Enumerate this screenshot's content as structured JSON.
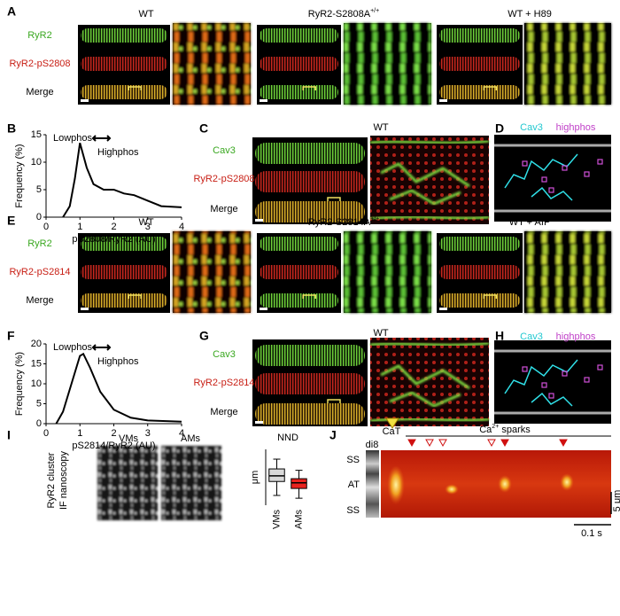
{
  "panels": {
    "A": {
      "label": "A",
      "titles": [
        "WT",
        "RyR2-S2808A",
        "WT + H89"
      ],
      "title_sup": "+/+",
      "rows": [
        "RyR2",
        "RyR2-pS2808",
        "Merge"
      ]
    },
    "B": {
      "label": "B"
    },
    "C": {
      "label": "C",
      "title": "WT",
      "rows": [
        "Cav3",
        "RyR2-pS2808",
        "Merge"
      ]
    },
    "D": {
      "label": "D",
      "legend": [
        "Cav3",
        "highphos"
      ]
    },
    "E": {
      "label": "E",
      "titles": [
        "WT",
        "RyR2-S2814A",
        "WT + AIP"
      ],
      "title_sup": "+/+",
      "rows": [
        "RyR2",
        "RyR2-pS2814",
        "Merge"
      ]
    },
    "F": {
      "label": "F"
    },
    "G": {
      "label": "G",
      "title": "WT",
      "rows": [
        "Cav3",
        "RyR2-pS2814",
        "Merge"
      ]
    },
    "H": {
      "label": "H",
      "legend": [
        "Cav3",
        "highphos"
      ]
    },
    "I": {
      "label": "I",
      "side_label": [
        "RyR2 cluster",
        "IF nanoscopy"
      ],
      "image_titles": [
        "VMs",
        "AMs"
      ]
    },
    "J": {
      "label": "J",
      "di8": "di8",
      "cat": "CaT",
      "sparks_base": "Ca",
      "sparks_sup": "2+",
      "sparks_rest": " sparks",
      "regions": [
        "SS",
        "AT",
        "SS"
      ],
      "scale_y": "5 μm",
      "scale_x": "0.1 s"
    }
  },
  "chart_data": [
    {
      "type": "line",
      "x": [
        0.5,
        0.7,
        0.85,
        1.0,
        1.2,
        1.4,
        1.7,
        2.0,
        2.3,
        2.6,
        3.0,
        3.4,
        4.0
      ],
      "values": [
        0,
        2,
        7,
        13.5,
        9,
        6,
        5,
        5,
        4.3,
        4,
        3,
        2,
        1.8
      ],
      "color": "#000000",
      "xlim": [
        0,
        4
      ],
      "ylim": [
        0,
        15
      ],
      "xticks": [
        0,
        1,
        2,
        3,
        4
      ],
      "yticks": [
        0,
        5,
        10,
        15
      ],
      "xlabel": "pS2808/RyR2 (AU)",
      "ylabel": "Frequency (%)",
      "annotations": [
        "Lowphos",
        "Highphos"
      ]
    },
    {
      "type": "line",
      "x": [
        0.3,
        0.5,
        0.75,
        1.0,
        1.1,
        1.3,
        1.6,
        2.0,
        2.5,
        3.0,
        4.0
      ],
      "values": [
        0,
        3,
        10,
        17,
        17.5,
        14,
        8,
        3.5,
        1.5,
        0.8,
        0.5
      ],
      "color": "#000000",
      "xlim": [
        0,
        4
      ],
      "ylim": [
        0,
        20
      ],
      "xticks": [
        0,
        1,
        2,
        3,
        4
      ],
      "yticks": [
        0,
        5,
        10,
        15,
        20
      ],
      "xlabel": "pS2814/RyR2 (AU)",
      "ylabel": "Frequency (%)",
      "annotations": [
        "Lowphos",
        "Highphos"
      ]
    },
    {
      "type": "box",
      "title": "NND",
      "ylabel": "μm",
      "categories": [
        "VMs",
        "AMs"
      ],
      "colors": [
        "#d9d9d9",
        "#e8231f"
      ],
      "boxes": [
        {
          "whisker_low": 0.27,
          "q1": 0.37,
          "median": 0.41,
          "q3": 0.46,
          "whisker_high": 0.53
        },
        {
          "whisker_low": 0.25,
          "q1": 0.32,
          "median": 0.36,
          "q3": 0.39,
          "whisker_high": 0.45
        }
      ],
      "ylim": [
        0.2,
        0.6
      ]
    }
  ]
}
